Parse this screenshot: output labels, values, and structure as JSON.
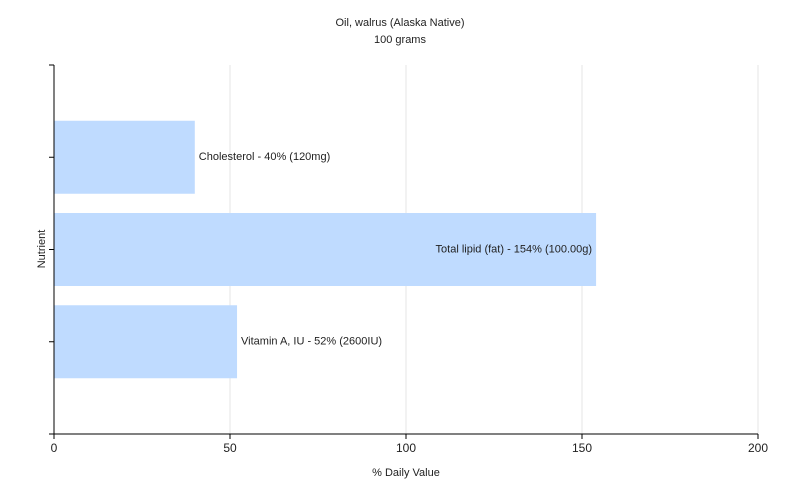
{
  "chart_data": {
    "type": "bar",
    "orientation": "horizontal",
    "title": "Oil, walrus (Alaska Native)",
    "subtitle": "100 grams",
    "xlabel": "% Daily Value",
    "ylabel": "Nutrient",
    "values": [
      40,
      154,
      52
    ],
    "value_labels": [
      "Cholesterol - 40% (120mg)",
      "Total lipid (fat) - 154% (100.00g)",
      "Vitamin A, IU - 52% (2600IU)"
    ],
    "color": "#bfdbff",
    "xlim": [
      0,
      200
    ],
    "xticks": [
      0,
      50,
      100,
      150,
      200
    ],
    "grid": true
  }
}
